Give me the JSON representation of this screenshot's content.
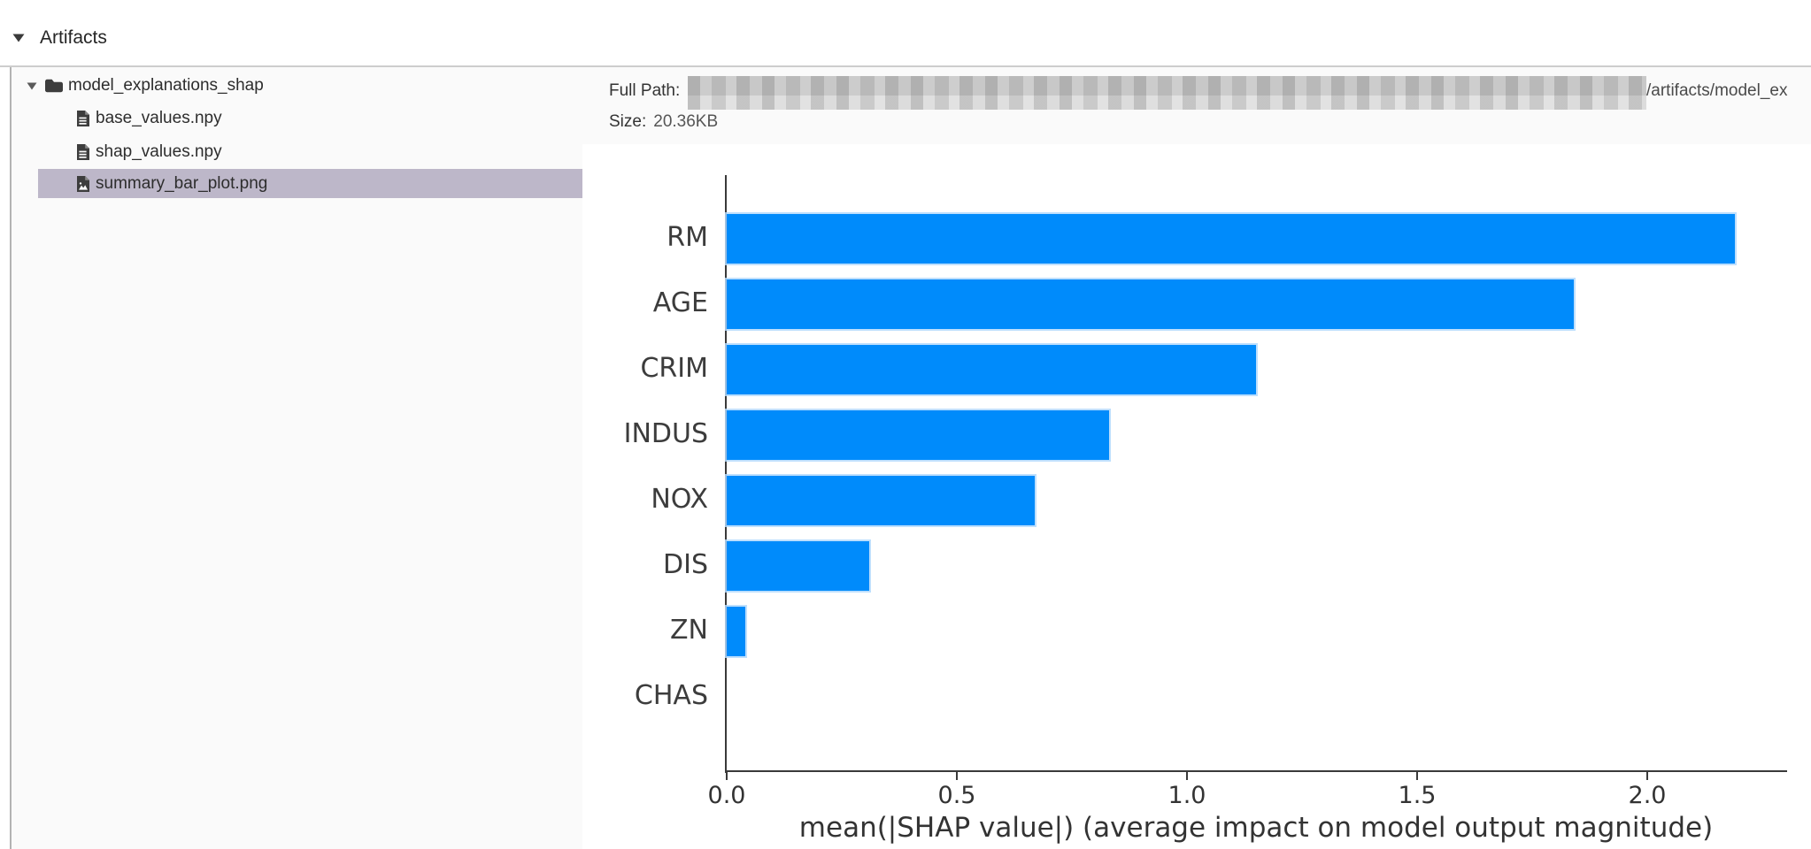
{
  "header": {
    "title": "Artifacts"
  },
  "sidebar": {
    "items": [
      {
        "label": "model_explanations_shap",
        "type": "folder",
        "expanded": true,
        "selected": false
      },
      {
        "label": "base_values.npy",
        "type": "file",
        "selected": false
      },
      {
        "label": "shap_values.npy",
        "type": "file",
        "selected": false
      },
      {
        "label": "summary_bar_plot.png",
        "type": "image-file",
        "selected": true
      }
    ]
  },
  "info": {
    "full_path_label": "Full Path:",
    "full_path_redacted": true,
    "full_path_visible_suffix": "/artifacts/model_ex",
    "size_label": "Size:",
    "size_value": "20.36KB"
  },
  "chart_data": {
    "type": "bar",
    "orientation": "horizontal",
    "categories": [
      "RM",
      "AGE",
      "CRIM",
      "INDUS",
      "NOX",
      "DIS",
      "ZN",
      "CHAS"
    ],
    "values": [
      2.19,
      1.84,
      1.15,
      0.83,
      0.67,
      0.31,
      0.04,
      0.0
    ],
    "title": "",
    "xlabel": "mean(|SHAP value|) (average impact on model output magnitude)",
    "ylabel": "",
    "xticks": [
      0.0,
      0.5,
      1.0,
      1.5,
      2.0
    ],
    "xtick_labels": [
      "0.0",
      "0.5",
      "1.0",
      "1.5",
      "2.0"
    ],
    "xlim": [
      0,
      2.3
    ],
    "grid": false,
    "legend": false,
    "bar_color": "#008bfb"
  },
  "colors": {
    "bar_blue": "#008bfb",
    "selected_row_bg": "#bdb7c9",
    "panel_bg": "#fafafa",
    "divider": "#cdcdcd"
  }
}
